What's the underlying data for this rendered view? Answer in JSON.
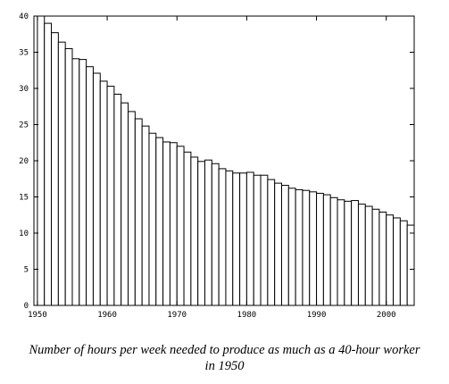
{
  "chart_data": {
    "type": "bar",
    "title": "",
    "xlabel": "",
    "ylabel": "",
    "caption": [
      "Number of hours per week needed to produce as much as a 40-hour worker",
      "in 1950"
    ],
    "x": [
      1950,
      1951,
      1952,
      1953,
      1954,
      1955,
      1956,
      1957,
      1958,
      1959,
      1960,
      1961,
      1962,
      1963,
      1964,
      1965,
      1966,
      1967,
      1968,
      1969,
      1970,
      1971,
      1972,
      1973,
      1974,
      1975,
      1976,
      1977,
      1978,
      1979,
      1980,
      1981,
      1982,
      1983,
      1984,
      1985,
      1986,
      1987,
      1988,
      1989,
      1990,
      1991,
      1992,
      1993,
      1994,
      1995,
      1996,
      1997,
      1998,
      1999,
      2000,
      2001,
      2002,
      2003
    ],
    "values": [
      40.0,
      39.0,
      37.7,
      36.4,
      35.5,
      34.1,
      34.0,
      33.0,
      32.1,
      31.0,
      30.3,
      29.2,
      28.0,
      26.8,
      25.8,
      24.8,
      23.8,
      23.2,
      22.6,
      22.5,
      22.0,
      21.2,
      20.5,
      19.9,
      20.1,
      19.6,
      18.9,
      18.6,
      18.3,
      18.3,
      18.4,
      18.0,
      18.0,
      17.4,
      16.9,
      16.6,
      16.2,
      16.0,
      15.9,
      15.7,
      15.5,
      15.3,
      14.9,
      14.6,
      14.4,
      14.5,
      14.0,
      13.7,
      13.3,
      12.9,
      12.5,
      12.1,
      11.7,
      11.1
    ],
    "xlim": [
      1949.5,
      2004
    ],
    "ylim": [
      0,
      40
    ],
    "x_ticks": [
      "1950",
      "1960",
      "1970",
      "1980",
      "1990",
      "2000"
    ],
    "y_ticks": [
      "0",
      "5",
      "10",
      "15",
      "20",
      "25",
      "30",
      "35",
      "40"
    ],
    "grid": false,
    "bar_fill": "#ffffff",
    "bar_stroke": "#000000"
  }
}
